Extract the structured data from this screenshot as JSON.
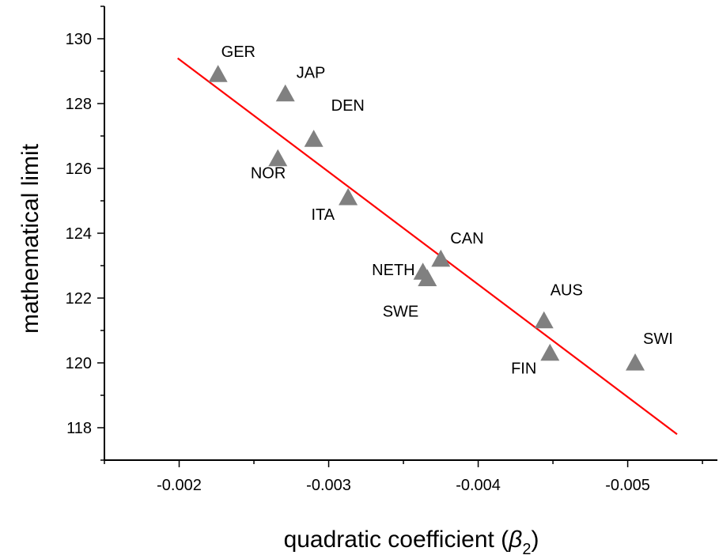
{
  "chart_data": {
    "type": "scatter",
    "title": "",
    "xlabel": "quadratic coefficient (",
    "xlabel_symbol": "β",
    "xlabel_subscript": "2",
    "xlabel_close": ")",
    "ylabel": "mathematical limit",
    "xlim": [
      -0.0015,
      -0.0056
    ],
    "ylim": [
      117,
      131
    ],
    "x_axis_reversed": true,
    "x_ticks": [
      -0.002,
      -0.003,
      -0.004,
      -0.005
    ],
    "x_tick_labels": [
      "-0.002",
      "-0.003",
      "-0.004",
      "-0.005"
    ],
    "y_ticks": [
      118,
      120,
      122,
      124,
      126,
      128,
      130
    ],
    "y_tick_labels": [
      "118",
      "120",
      "122",
      "124",
      "126",
      "128",
      "130"
    ],
    "grid": false,
    "marker": "triangle",
    "marker_color": "#808080",
    "line_color": "#ff0000",
    "points": [
      {
        "label": "GER",
        "x": -0.00226,
        "y": 128.9
      },
      {
        "label": "JAP",
        "x": -0.00271,
        "y": 128.3
      },
      {
        "label": "DEN",
        "x": -0.0029,
        "y": 126.9
      },
      {
        "label": "NOR",
        "x": -0.00266,
        "y": 126.3
      },
      {
        "label": "ITA",
        "x": -0.00313,
        "y": 125.1
      },
      {
        "label": "CAN",
        "x": -0.00375,
        "y": 123.2
      },
      {
        "label": "NETH",
        "x": -0.00363,
        "y": 122.8
      },
      {
        "label": "SWE",
        "x": -0.00366,
        "y": 122.6
      },
      {
        "label": "AUS",
        "x": -0.00444,
        "y": 121.3
      },
      {
        "label": "FIN",
        "x": -0.00448,
        "y": 120.3
      },
      {
        "label": "SWI",
        "x": -0.00505,
        "y": 120.0
      }
    ],
    "fit_line": {
      "x": [
        -0.00199,
        -0.00533
      ],
      "y": [
        129.4,
        117.8
      ]
    }
  }
}
